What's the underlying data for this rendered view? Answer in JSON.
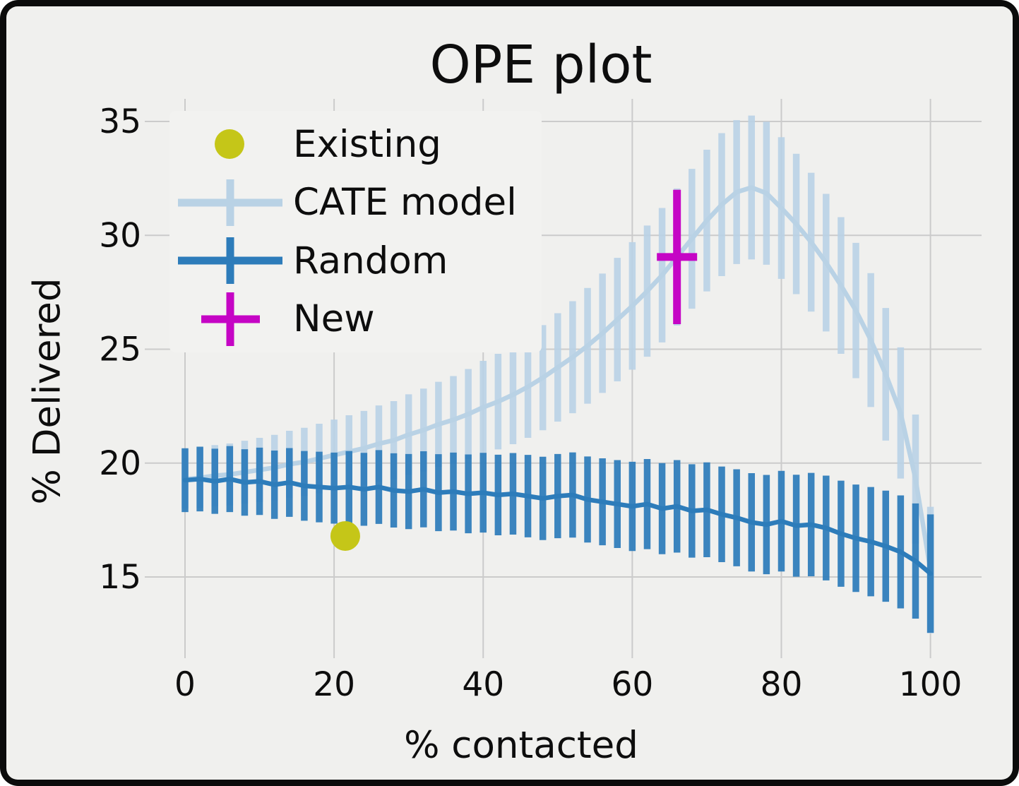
{
  "window": {
    "background": "#f0f0ee",
    "frame_color": "#0b0b0b",
    "grid_color": "#cbcbcb",
    "text_color": "#0d0d0d"
  },
  "chart_data": {
    "type": "line",
    "title": "OPE plot",
    "xlabel": "% contacted",
    "ylabel": "% Delivered",
    "xlim": [
      -5,
      107
    ],
    "ylim": [
      11.3,
      36.0
    ],
    "xticks": [
      0,
      20,
      40,
      60,
      80,
      100
    ],
    "yticks": [
      15,
      20,
      25,
      30,
      35
    ],
    "grid": true,
    "legend_position": "upper left",
    "series": [
      {
        "name": "Existing",
        "type": "scatter",
        "color": "#c5c618",
        "x": [
          21.5
        ],
        "y": [
          16.8
        ]
      },
      {
        "name": "CATE model",
        "type": "line+errorbar",
        "color": "#b9d2e5",
        "x": [
          0,
          2,
          4,
          6,
          8,
          10,
          12,
          14,
          16,
          18,
          20,
          22,
          24,
          26,
          28,
          30,
          32,
          34,
          36,
          38,
          40,
          42,
          44,
          46,
          48,
          50,
          52,
          54,
          56,
          58,
          60,
          62,
          64,
          66,
          68,
          70,
          72,
          74,
          76,
          78,
          80,
          82,
          84,
          86,
          88,
          90,
          92,
          94,
          96,
          98,
          100
        ],
        "y": [
          19.3,
          19.35,
          19.45,
          19.5,
          19.6,
          19.7,
          19.8,
          19.95,
          20.05,
          20.2,
          20.35,
          20.5,
          20.65,
          20.85,
          21.0,
          21.25,
          21.45,
          21.7,
          21.9,
          22.15,
          22.45,
          22.7,
          23.0,
          23.35,
          23.75,
          24.2,
          24.65,
          25.15,
          25.7,
          26.3,
          26.9,
          27.55,
          28.25,
          29.05,
          29.85,
          30.65,
          31.35,
          31.9,
          32.1,
          31.85,
          31.2,
          30.5,
          29.7,
          28.8,
          27.8,
          26.7,
          25.4,
          23.9,
          22.2,
          19.3,
          15.3
        ],
        "yerr": [
          1.3,
          1.32,
          1.34,
          1.36,
          1.38,
          1.41,
          1.44,
          1.47,
          1.5,
          1.53,
          1.56,
          1.6,
          1.64,
          1.68,
          1.72,
          1.77,
          1.82,
          1.87,
          1.92,
          1.98,
          2.04,
          2.1,
          2.17,
          2.24,
          2.31,
          2.38,
          2.46,
          2.54,
          2.62,
          2.71,
          2.8,
          2.88,
          2.95,
          3.01,
          3.07,
          3.11,
          3.14,
          3.16,
          3.16,
          3.14,
          3.11,
          3.08,
          3.05,
          3.02,
          3.0,
          2.97,
          2.94,
          2.91,
          2.88,
          2.83,
          2.78
        ]
      },
      {
        "name": "Random",
        "type": "line+errorbar",
        "color": "#2d7cba",
        "x": [
          0,
          2,
          4,
          6,
          8,
          10,
          12,
          14,
          16,
          18,
          20,
          22,
          24,
          26,
          28,
          30,
          32,
          34,
          36,
          38,
          40,
          42,
          44,
          46,
          48,
          50,
          52,
          54,
          56,
          58,
          60,
          62,
          64,
          66,
          68,
          70,
          72,
          74,
          76,
          78,
          80,
          82,
          84,
          86,
          88,
          90,
          92,
          94,
          96,
          98,
          100
        ],
        "y": [
          19.25,
          19.3,
          19.2,
          19.3,
          19.15,
          19.2,
          19.05,
          19.15,
          19.0,
          18.95,
          18.9,
          18.95,
          18.85,
          18.95,
          18.8,
          18.75,
          18.85,
          18.7,
          18.75,
          18.65,
          18.7,
          18.6,
          18.65,
          18.55,
          18.45,
          18.55,
          18.6,
          18.4,
          18.3,
          18.2,
          18.1,
          18.2,
          18.0,
          18.1,
          17.9,
          17.95,
          17.75,
          17.6,
          17.4,
          17.3,
          17.45,
          17.25,
          17.3,
          17.15,
          16.9,
          16.7,
          16.55,
          16.35,
          16.1,
          15.7,
          15.15
        ],
        "yerr": [
          1.4,
          1.42,
          1.43,
          1.45,
          1.46,
          1.48,
          1.5,
          1.51,
          1.53,
          1.55,
          1.56,
          1.58,
          1.6,
          1.62,
          1.63,
          1.65,
          1.67,
          1.69,
          1.71,
          1.73,
          1.75,
          1.77,
          1.79,
          1.81,
          1.83,
          1.85,
          1.87,
          1.89,
          1.91,
          1.93,
          1.96,
          1.98,
          2.0,
          2.03,
          2.05,
          2.08,
          2.1,
          2.13,
          2.16,
          2.18,
          2.21,
          2.24,
          2.27,
          2.3,
          2.33,
          2.36,
          2.4,
          2.44,
          2.48,
          2.53,
          2.6
        ]
      },
      {
        "name": "New",
        "type": "point+errorbar",
        "color": "#c505c5",
        "x": [
          66
        ],
        "y": [
          29.05
        ],
        "yerr": [
          2.95
        ],
        "xerr": [
          2.7
        ]
      }
    ]
  }
}
